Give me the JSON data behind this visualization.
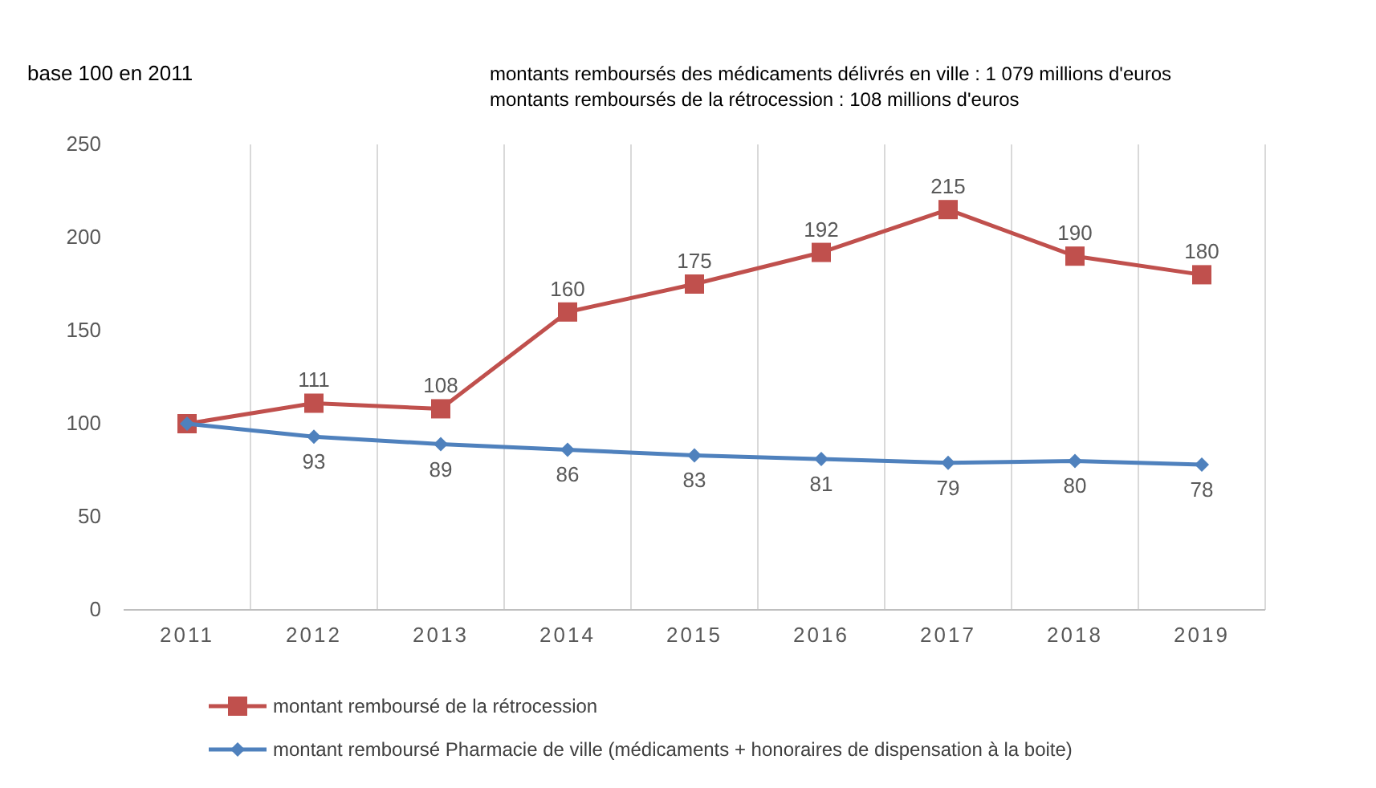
{
  "chart_data": {
    "type": "line",
    "subtitle": "base 100 en  2011",
    "annotations": [
      "montants remboursés des médicaments délivrés en ville : 1 079 millions d'euros",
      "montants remboursés de la rétrocession : 108 millions d'euros"
    ],
    "categories": [
      "2011",
      "2012",
      "2013",
      "2014",
      "2015",
      "2016",
      "2017",
      "2018",
      "2019"
    ],
    "series": [
      {
        "name": "montant remboursé de la rétrocession",
        "color": "#c0504d",
        "marker": "square",
        "values": [
          100,
          111,
          108,
          160,
          175,
          192,
          215,
          190,
          180
        ],
        "value_labels": [
          null,
          "111",
          "108",
          "160",
          "175",
          "192",
          "215",
          "190",
          "180"
        ]
      },
      {
        "name": "montant remboursé Pharmacie de ville (médicaments + honoraires de dispensation à la boite)",
        "color": "#4f81bd",
        "marker": "diamond",
        "values": [
          100,
          93,
          89,
          86,
          83,
          81,
          79,
          80,
          78
        ],
        "value_labels": [
          null,
          "93",
          "89",
          "86",
          "83",
          "81",
          "79",
          "80",
          "78"
        ]
      }
    ],
    "ylim": [
      0,
      250
    ],
    "yticks": [
      0,
      50,
      100,
      150,
      200,
      250
    ],
    "grid": "x",
    "legend": "bottom",
    "line_style": "solid"
  }
}
